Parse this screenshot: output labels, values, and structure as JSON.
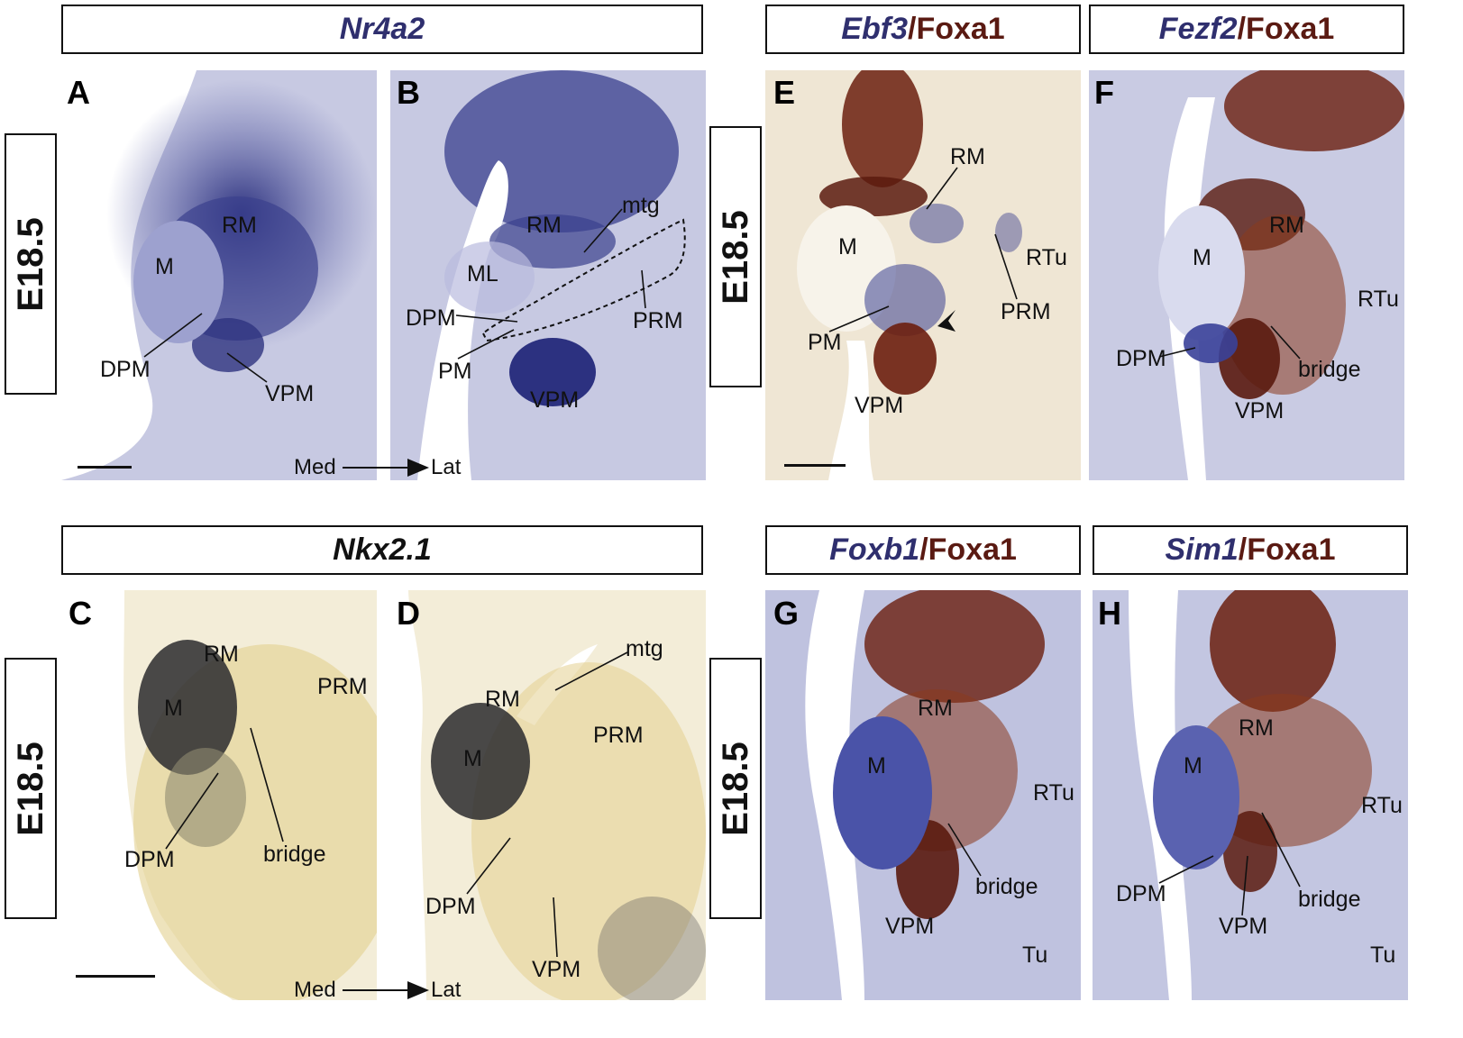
{
  "headers": {
    "nr4a2": "Nr4a2",
    "nkx21": "Nkx2.1",
    "ebf3": "Ebf3",
    "fezf2": "Fezf2",
    "foxb1": "Foxb1",
    "sim1": "Sim1",
    "slash": "/",
    "foxa1": "Foxa1"
  },
  "stage_label": "E18.5",
  "panel_letters": {
    "A": "A",
    "B": "B",
    "C": "C",
    "D": "D",
    "E": "E",
    "F": "F",
    "G": "G",
    "H": "H"
  },
  "regions": {
    "RM": "RM",
    "M": "M",
    "DPM": "DPM",
    "VPM": "VPM",
    "PM": "PM",
    "ML": "ML",
    "PRM": "PRM",
    "mtg": "mtg",
    "RTu": "RTu",
    "Tu": "Tu",
    "bridge": "bridge"
  },
  "axis": {
    "med": "Med",
    "lat": "Lat"
  },
  "colors": {
    "ish_blue": "#3a3f8f",
    "foxa1_brown": "#6b1e0e",
    "tissue_lavender": "#c9cbe3",
    "tissue_cream": "#efe6d4",
    "nkx_yellow": "#e6d59a"
  }
}
